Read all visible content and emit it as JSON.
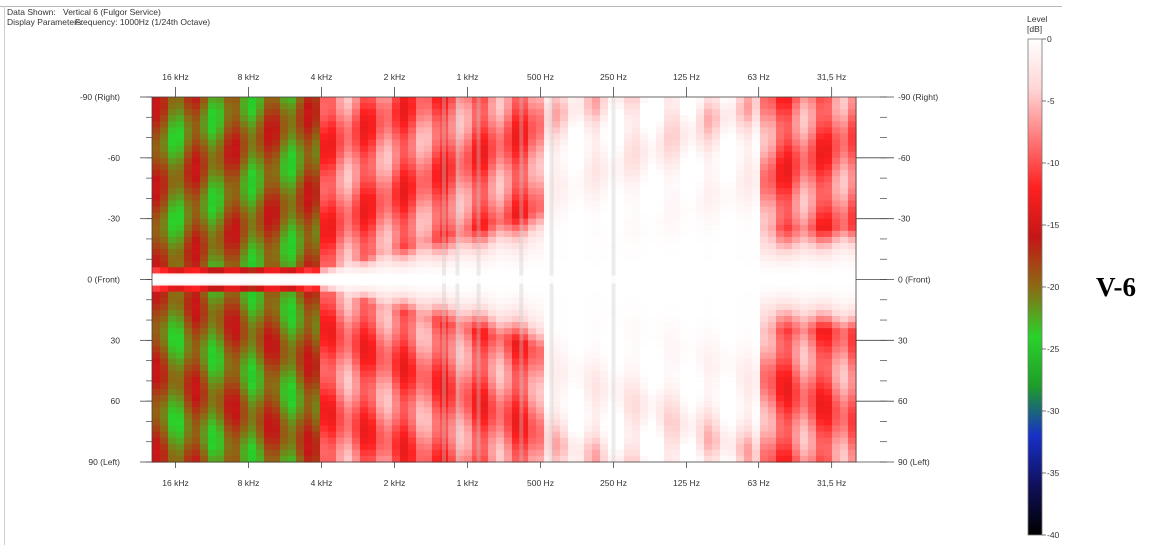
{
  "header": {
    "data_shown_key": "Data Shown:",
    "data_shown_value": "Vertical 6 (Fulgor Service)",
    "display_params_key": "Display Parameters:",
    "display_params_value": "Frequency: 1000Hz (1/24th Octave)"
  },
  "side_tag": "V-6",
  "colors": {
    "scale": [
      "#000000",
      "#10105a",
      "#1730c8",
      "#1f9c2a",
      "#2ad22a",
      "#8c6a14",
      "#c41616",
      "#ff2020",
      "#ff7a7a",
      "#ffd6d6",
      "#ffffff"
    ],
    "gray_band": "#c8c8c8"
  },
  "chart_data": {
    "type": "heatmap",
    "title": "",
    "xlabel": "",
    "ylabel": "",
    "x_axis": {
      "scale": "log",
      "direction": "decreasing",
      "tick_labels": [
        "16 kHz",
        "8 kHz",
        "4 kHz",
        "2 kHz",
        "1 kHz",
        "500 Hz",
        "250 Hz",
        "125 Hz",
        "63 Hz",
        "31,5 Hz"
      ],
      "tick_values_hz": [
        16000,
        8000,
        4000,
        2000,
        1000,
        500,
        250,
        125,
        63,
        31.5
      ],
      "range_hz": [
        20000,
        25
      ]
    },
    "y_axis": {
      "tick_labels": [
        "-90 (Right)",
        "-60",
        "-30",
        "0 (Front)",
        "30",
        "60",
        "90 (Left)"
      ],
      "tick_values_deg": [
        -90,
        -60,
        -30,
        0,
        30,
        60,
        90
      ],
      "range_deg": [
        -90,
        90
      ]
    },
    "colorbar": {
      "title": "Level",
      "unit": "[dB]",
      "tick_labels": [
        "0",
        "-5",
        "-10",
        "-15",
        "-20",
        "-25",
        "-30",
        "-35",
        "-40"
      ],
      "range_db": [
        -40,
        0
      ]
    },
    "region_levels_db": [
      {
        "region": "above 4 kHz, off-axis",
        "level_db": -20
      },
      {
        "region": "4 kHz - 500 Hz, off-axis",
        "level_db": -9
      },
      {
        "region": "below 500 Hz",
        "level_db": -2
      },
      {
        "region": "63 Hz - 31,5 Hz, off-axis",
        "level_db": -9
      },
      {
        "region": "on-axis",
        "level_db": 0
      }
    ]
  }
}
